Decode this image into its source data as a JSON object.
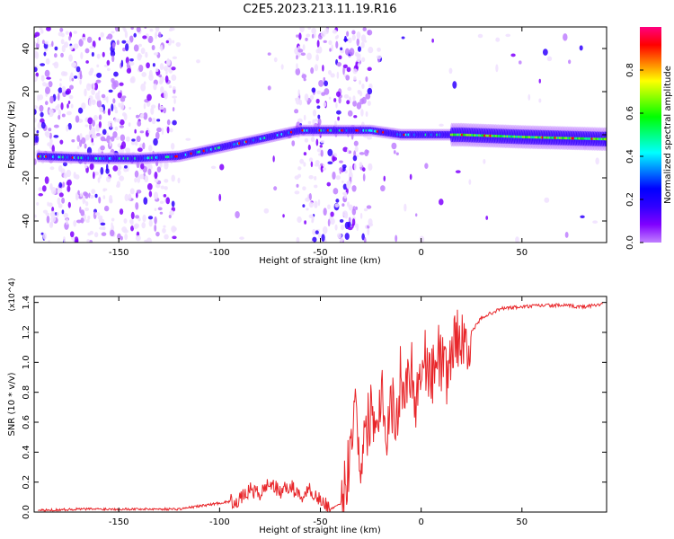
{
  "title": "C2E5.2023.213.11.19.R16",
  "colors": {
    "snr_line": "#e8262a",
    "spectrogram_scale": [
      "#ffffff",
      "#f0e0ff",
      "#c080ff",
      "#8000ff",
      "#3000ff",
      "#0000ff",
      "#0080ff",
      "#00ffff",
      "#00ff80",
      "#00ff00",
      "#80ff00",
      "#ffff00",
      "#ff8000",
      "#ff0000",
      "#ff0080"
    ]
  },
  "chart_data": [
    {
      "type": "heatmap",
      "xlabel": "Height of straight line (km)",
      "ylabel": "Frequency (Hz)",
      "xlim": [
        -192,
        92
      ],
      "ylim": [
        -50,
        50
      ],
      "x_ticks": [
        "-150",
        "-100",
        "-50",
        "0",
        "50"
      ],
      "y_ticks": [
        "-40",
        "-20",
        "0",
        "20",
        "40"
      ],
      "colorbar": {
        "label": "Normalized spectral amplitude",
        "range": [
          0,
          1
        ],
        "ticks": [
          "0.0",
          "0.2",
          "0.4",
          "0.6",
          "0.8"
        ]
      },
      "ridge": {
        "x": [
          -190,
          -160,
          -140,
          -120,
          -100,
          -80,
          -60,
          -40,
          -25,
          -10,
          0,
          20,
          50,
          90
        ],
        "freq": [
          -10,
          -11,
          -11,
          -10,
          -6,
          -2,
          2,
          2,
          2,
          0,
          0,
          0,
          -1,
          -2
        ]
      }
    },
    {
      "type": "line",
      "xlabel": "Height of straight line (km)",
      "ylabel": "SNR (10 * v/v)",
      "y_multiplier": "(x10^4)",
      "xlim": [
        -192,
        92
      ],
      "ylim": [
        0,
        1.44
      ],
      "x_ticks": [
        "-150",
        "-100",
        "-50",
        "0",
        "50"
      ],
      "y_ticks": [
        "0.0",
        "0.2",
        "0.4",
        "0.6",
        "0.8",
        "1.0",
        "1.2",
        "1.4"
      ],
      "series": [
        {
          "x": [
            -190,
            -170,
            -150,
            -130,
            -120,
            -110,
            -100,
            -90,
            -85,
            -80,
            -75,
            -70,
            -65,
            -60,
            -55,
            -50,
            -45,
            -40,
            -37,
            -35,
            -33,
            -30,
            -27,
            -25,
            -22,
            -20,
            -17,
            -15,
            -12,
            -10,
            -8,
            -5,
            -3,
            0,
            3,
            5,
            8,
            10,
            12,
            15,
            18,
            20,
            25,
            30,
            40,
            50,
            60,
            70,
            80,
            90
          ],
          "values": [
            0.01,
            0.02,
            0.02,
            0.02,
            0.02,
            0.04,
            0.06,
            0.08,
            0.15,
            0.12,
            0.2,
            0.13,
            0.18,
            0.1,
            0.15,
            0.08,
            0.02,
            0.05,
            0.2,
            0.5,
            0.75,
            0.35,
            0.55,
            0.7,
            0.6,
            0.85,
            0.55,
            0.75,
            0.6,
            0.95,
            0.8,
            1.0,
            0.75,
            0.95,
            1.05,
            0.85,
            1.1,
            1.0,
            0.9,
            1.05,
            1.2,
            1.1,
            1.2,
            1.3,
            1.36,
            1.37,
            1.38,
            1.38,
            1.37,
            1.39
          ]
        }
      ]
    }
  ]
}
